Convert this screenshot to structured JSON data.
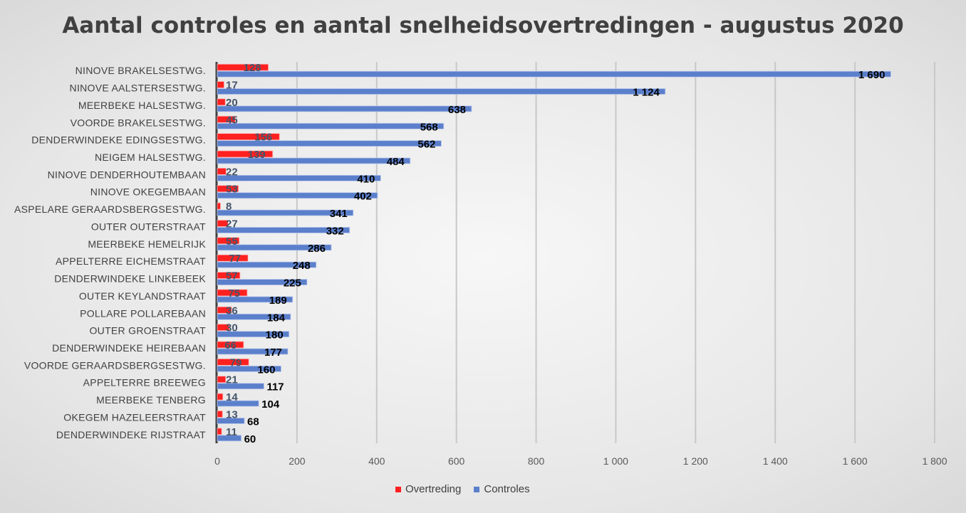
{
  "chart_data": {
    "type": "bar",
    "orientation": "horizontal",
    "title": "Aantal controles en aantal snelheidsovertredingen - augustus 2020",
    "categories": [
      "NINOVE BRAKELSESTWG.",
      "NINOVE AALSTERSESTWG.",
      "MEERBEKE HALSESTWG.",
      "VOORDE BRAKELSESTWG.",
      "DENDERWINDEKE EDINGSESTWG.",
      "NEIGEM HALSESTWG.",
      "NINOVE DENDERHOUTEMBAAN",
      "NINOVE OKEGEMBAAN",
      "ASPELARE GERAARDSBERGSESTWG.",
      "OUTER OUTERSTRAAT",
      "MEERBEKE HEMELRIJK",
      "APPELTERRE EICHEMSTRAAT",
      "DENDERWINDEKE LINKEBEEK",
      "OUTER KEYLANDSTRAAT",
      "POLLARE POLLAREBAAN",
      "OUTER GROENSTRAAT",
      "DENDERWINDEKE HEIREBAAN",
      "VOORDE GERAARDSBERGSESTWG.",
      "APPELTERRE BREEWEG",
      "MEERBEKE TENBERG",
      "OKEGEM HAZELEERSTRAAT",
      "DENDERWINDEKE RIJSTRAAT"
    ],
    "series": [
      {
        "name": "Overtreding",
        "color": "#ff2020",
        "values": [
          128,
          17,
          20,
          45,
          156,
          139,
          22,
          53,
          8,
          27,
          55,
          77,
          57,
          75,
          36,
          30,
          66,
          79,
          21,
          14,
          13,
          11
        ]
      },
      {
        "name": "Controles",
        "color": "#5b7fcb",
        "values": [
          1690,
          1124,
          638,
          568,
          562,
          484,
          410,
          402,
          341,
          332,
          286,
          248,
          225,
          189,
          184,
          180,
          177,
          160,
          117,
          104,
          68,
          60
        ]
      }
    ],
    "xlim": [
      0,
      1800
    ],
    "xticks": [
      0,
      200,
      400,
      600,
      800,
      1000,
      1200,
      1400,
      1600,
      1800
    ],
    "xtick_labels": [
      "0",
      "200",
      "400",
      "600",
      "800",
      "1 000",
      "1 200",
      "1 400",
      "1 600",
      "1 800"
    ],
    "grid": true,
    "legend": "bottom",
    "xlabel": "",
    "ylabel": ""
  }
}
